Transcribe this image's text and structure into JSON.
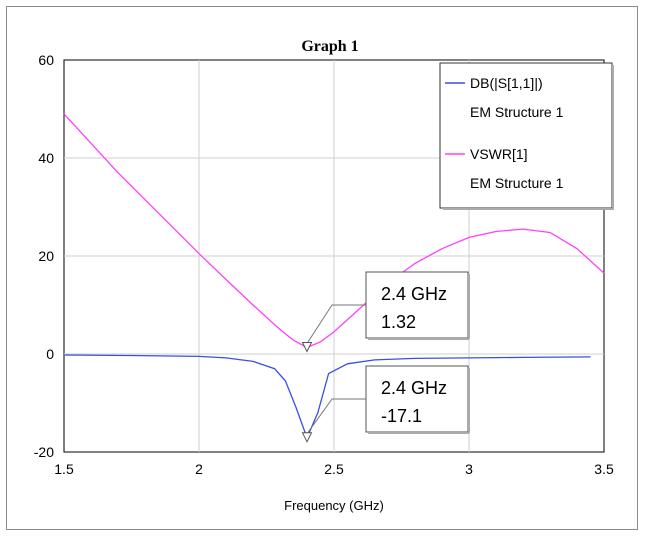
{
  "chart_data": {
    "type": "line",
    "title": "Graph 1",
    "xlabel": "Frequency (GHz)",
    "ylabel": "",
    "xlim": [
      1.5,
      3.5
    ],
    "ylim": [
      -20,
      60
    ],
    "x_ticks": [
      "1.5",
      "2",
      "2.5",
      "3",
      "3.5"
    ],
    "y_ticks": [
      "-20",
      "0",
      "20",
      "40",
      "60"
    ],
    "grid": true,
    "legend_position": "top-right",
    "series": [
      {
        "name": "DB(|S[1,1]|)",
        "subname": "EM Structure 1",
        "color": "#3b4fe0",
        "points": [
          [
            1.5,
            -0.2
          ],
          [
            1.75,
            -0.3
          ],
          [
            2.0,
            -0.5
          ],
          [
            2.1,
            -0.8
          ],
          [
            2.2,
            -1.5
          ],
          [
            2.28,
            -3.0
          ],
          [
            2.32,
            -5.5
          ],
          [
            2.36,
            -11.0
          ],
          [
            2.4,
            -17.1
          ],
          [
            2.44,
            -12.0
          ],
          [
            2.48,
            -4.0
          ],
          [
            2.55,
            -2.0
          ],
          [
            2.65,
            -1.2
          ],
          [
            2.8,
            -0.9
          ],
          [
            3.0,
            -0.8
          ],
          [
            3.2,
            -0.7
          ],
          [
            3.45,
            -0.6
          ]
        ]
      },
      {
        "name": "VSWR[1]",
        "subname": "EM Structure 1",
        "color": "#ff40ff",
        "points": [
          [
            1.5,
            49.0
          ],
          [
            1.6,
            43.0
          ],
          [
            1.7,
            37.0
          ],
          [
            1.8,
            31.5
          ],
          [
            1.9,
            26.0
          ],
          [
            2.0,
            20.5
          ],
          [
            2.1,
            15.2
          ],
          [
            2.2,
            10.0
          ],
          [
            2.3,
            5.0
          ],
          [
            2.35,
            2.8
          ],
          [
            2.4,
            1.32
          ],
          [
            2.45,
            2.5
          ],
          [
            2.5,
            4.5
          ],
          [
            2.6,
            9.5
          ],
          [
            2.7,
            14.5
          ],
          [
            2.8,
            18.5
          ],
          [
            2.9,
            21.5
          ],
          [
            3.0,
            23.8
          ],
          [
            3.1,
            25.0
          ],
          [
            3.2,
            25.5
          ],
          [
            3.3,
            24.8
          ],
          [
            3.4,
            21.5
          ],
          [
            3.5,
            16.5
          ]
        ]
      }
    ],
    "annotations": [
      {
        "series": 1,
        "x": 2.4,
        "y": 1.32,
        "line1": "2.4 GHz",
        "line2": "1.32"
      },
      {
        "series": 0,
        "x": 2.4,
        "y": -17.1,
        "line1": "2.4 GHz",
        "line2": "-17.1"
      }
    ]
  }
}
